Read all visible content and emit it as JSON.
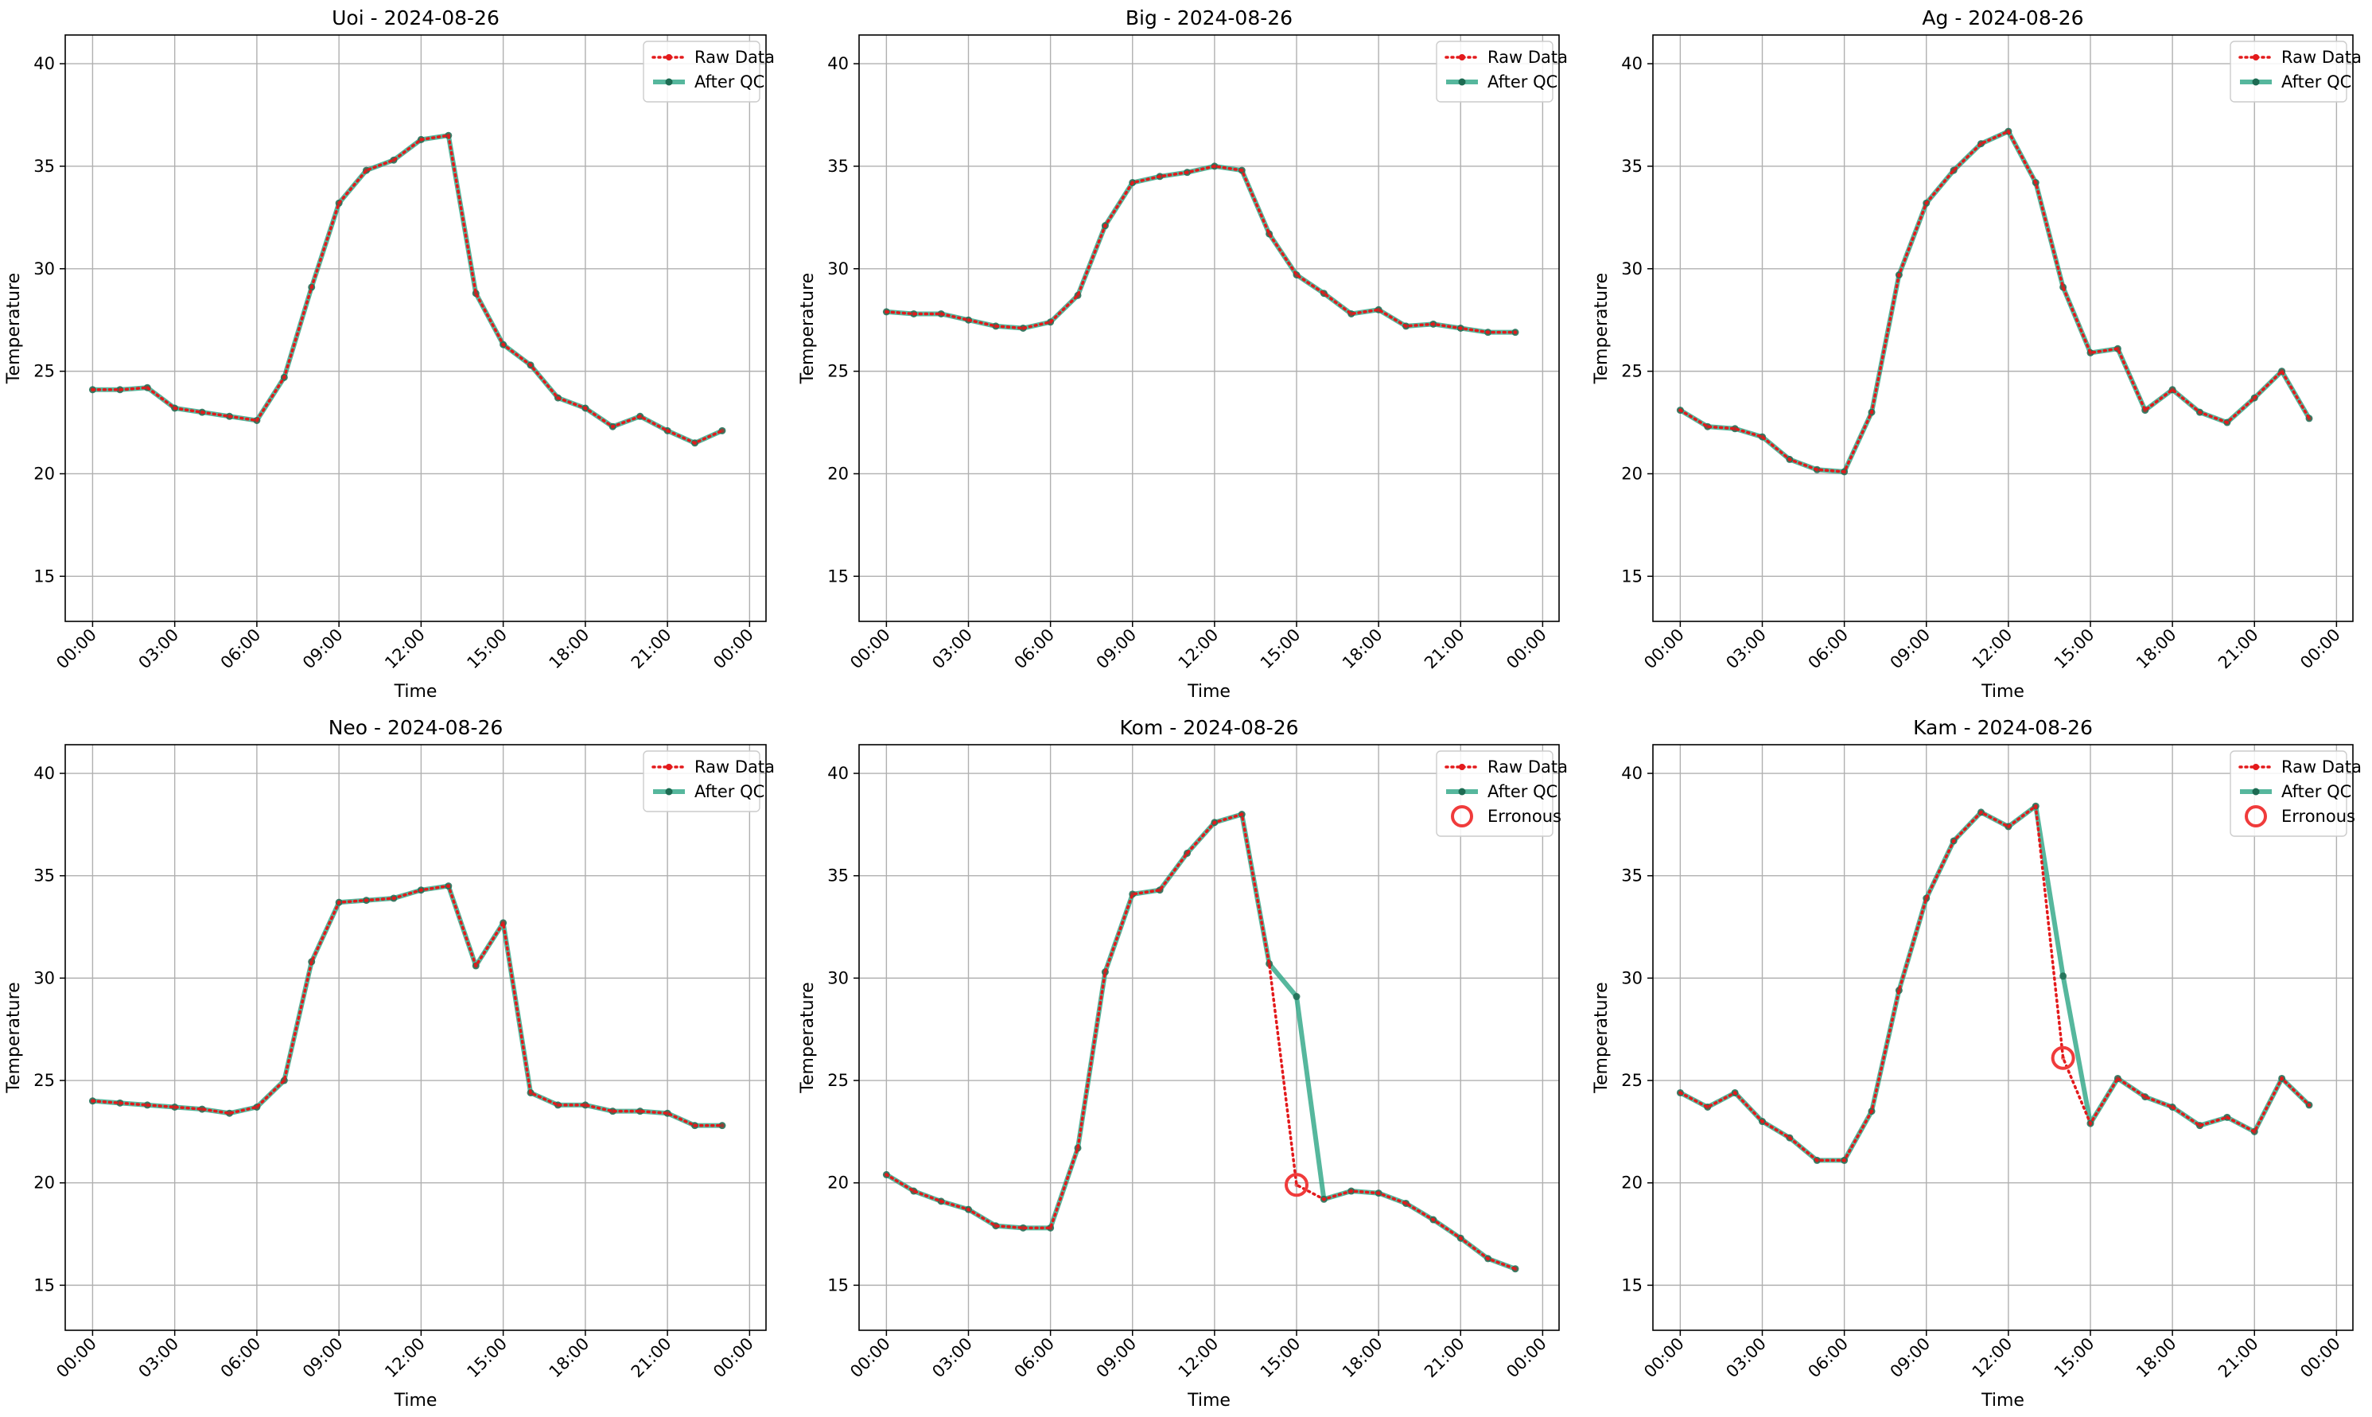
{
  "colors": {
    "raw": "#e31a1c",
    "qc": "#2ca584",
    "qc_marker": "#1d6b52",
    "erroneous": "#f03b3b",
    "grid": "#b0b0b0",
    "axis": "#000000"
  },
  "chart_data": [
    {
      "type": "line",
      "title": "Uoi - 2024-08-26",
      "xlabel": "Time",
      "ylabel": "Temperature",
      "ylim": [
        12.8,
        41.4
      ],
      "yticks": [
        15,
        20,
        25,
        30,
        35,
        40
      ],
      "xlim": [
        -1.0,
        24.6
      ],
      "xticks": [
        0,
        3,
        6,
        9,
        12,
        15,
        18,
        21,
        24
      ],
      "xticklabels": [
        "00:00",
        "03:00",
        "06:00",
        "09:00",
        "12:00",
        "15:00",
        "18:00",
        "21:00",
        "00:00"
      ],
      "grid": true,
      "legend_position": "top-right",
      "legend": [
        "Raw Data",
        "After QC"
      ],
      "x": [
        0,
        1,
        2,
        3,
        4,
        5,
        6,
        7,
        8,
        9,
        10,
        11,
        12,
        13,
        14,
        15,
        16,
        17,
        18,
        19,
        20,
        21,
        22,
        23
      ],
      "series": [
        {
          "name": "Raw Data",
          "style": "dotted",
          "values": [
            24.1,
            24.1,
            24.2,
            23.2,
            23.0,
            22.8,
            22.6,
            24.7,
            29.1,
            33.2,
            34.8,
            35.3,
            36.3,
            36.5,
            28.8,
            26.3,
            25.3,
            23.7,
            23.2,
            22.3,
            22.8,
            22.1,
            21.5,
            22.1
          ]
        },
        {
          "name": "After QC",
          "style": "solid",
          "values": [
            24.1,
            24.1,
            24.2,
            23.2,
            23.0,
            22.8,
            22.6,
            24.7,
            29.1,
            33.2,
            34.8,
            35.3,
            36.3,
            36.5,
            28.8,
            26.3,
            25.3,
            23.7,
            23.2,
            22.3,
            22.8,
            22.1,
            21.5,
            22.1
          ]
        }
      ],
      "erroneous": []
    },
    {
      "type": "line",
      "title": "Big - 2024-08-26",
      "xlabel": "Time",
      "ylabel": "Temperature",
      "ylim": [
        12.8,
        41.4
      ],
      "yticks": [
        15,
        20,
        25,
        30,
        35,
        40
      ],
      "xlim": [
        -1.0,
        24.6
      ],
      "xticks": [
        0,
        3,
        6,
        9,
        12,
        15,
        18,
        21,
        24
      ],
      "xticklabels": [
        "00:00",
        "03:00",
        "06:00",
        "09:00",
        "12:00",
        "15:00",
        "18:00",
        "21:00",
        "00:00"
      ],
      "grid": true,
      "legend_position": "top-right",
      "legend": [
        "Raw Data",
        "After QC"
      ],
      "x": [
        0,
        1,
        2,
        3,
        4,
        5,
        6,
        7,
        8,
        9,
        10,
        11,
        12,
        13,
        14,
        15,
        16,
        17,
        18,
        19,
        20,
        21,
        22,
        23
      ],
      "series": [
        {
          "name": "Raw Data",
          "style": "dotted",
          "values": [
            27.9,
            27.8,
            27.8,
            27.5,
            27.2,
            27.1,
            27.4,
            28.7,
            32.1,
            34.2,
            34.5,
            34.7,
            35.0,
            34.8,
            31.7,
            29.7,
            28.8,
            27.8,
            28.0,
            27.2,
            27.3,
            27.1,
            26.9,
            26.9
          ]
        },
        {
          "name": "After QC",
          "style": "solid",
          "values": [
            27.9,
            27.8,
            27.8,
            27.5,
            27.2,
            27.1,
            27.4,
            28.7,
            32.1,
            34.2,
            34.5,
            34.7,
            35.0,
            34.8,
            31.7,
            29.7,
            28.8,
            27.8,
            28.0,
            27.2,
            27.3,
            27.1,
            26.9,
            26.9
          ]
        }
      ],
      "erroneous": []
    },
    {
      "type": "line",
      "title": "Ag - 2024-08-26",
      "xlabel": "Time",
      "ylabel": "Temperature",
      "ylim": [
        12.8,
        41.4
      ],
      "yticks": [
        15,
        20,
        25,
        30,
        35,
        40
      ],
      "xlim": [
        -1.0,
        24.6
      ],
      "xticks": [
        0,
        3,
        6,
        9,
        12,
        15,
        18,
        21,
        24
      ],
      "xticklabels": [
        "00:00",
        "03:00",
        "06:00",
        "09:00",
        "12:00",
        "15:00",
        "18:00",
        "21:00",
        "00:00"
      ],
      "grid": true,
      "legend_position": "top-right",
      "legend": [
        "Raw Data",
        "After QC"
      ],
      "x": [
        0,
        1,
        2,
        3,
        4,
        5,
        6,
        7,
        8,
        9,
        10,
        11,
        12,
        13,
        14,
        15,
        16,
        17,
        18,
        19,
        20,
        21,
        22,
        23
      ],
      "series": [
        {
          "name": "Raw Data",
          "style": "dotted",
          "values": [
            23.1,
            22.3,
            22.2,
            21.8,
            20.7,
            20.2,
            20.1,
            23.0,
            29.7,
            33.2,
            34.8,
            36.1,
            36.7,
            34.2,
            29.1,
            25.9,
            26.1,
            23.1,
            24.1,
            23.0,
            22.5,
            23.7,
            25.0,
            22.7
          ]
        },
        {
          "name": "After QC",
          "style": "solid",
          "values": [
            23.1,
            22.3,
            22.2,
            21.8,
            20.7,
            20.2,
            20.1,
            23.0,
            29.7,
            33.2,
            34.8,
            36.1,
            36.7,
            34.2,
            29.1,
            25.9,
            26.1,
            23.1,
            24.1,
            23.0,
            22.5,
            23.7,
            25.0,
            22.7
          ]
        }
      ],
      "erroneous": []
    },
    {
      "type": "line",
      "title": "Neo - 2024-08-26",
      "xlabel": "Time",
      "ylabel": "Temperature",
      "ylim": [
        12.8,
        41.4
      ],
      "yticks": [
        15,
        20,
        25,
        30,
        35,
        40
      ],
      "xlim": [
        -1.0,
        24.6
      ],
      "xticks": [
        0,
        3,
        6,
        9,
        12,
        15,
        18,
        21,
        24
      ],
      "xticklabels": [
        "00:00",
        "03:00",
        "06:00",
        "09:00",
        "12:00",
        "15:00",
        "18:00",
        "21:00",
        "00:00"
      ],
      "grid": true,
      "legend_position": "top-right",
      "legend": [
        "Raw Data",
        "After QC"
      ],
      "x": [
        0,
        1,
        2,
        3,
        4,
        5,
        6,
        7,
        8,
        9,
        10,
        11,
        12,
        13,
        14,
        15,
        16,
        17,
        18,
        19,
        20,
        21,
        22,
        23
      ],
      "series": [
        {
          "name": "Raw Data",
          "style": "dotted",
          "values": [
            24.0,
            23.9,
            23.8,
            23.7,
            23.6,
            23.4,
            23.7,
            25.0,
            30.8,
            33.7,
            33.8,
            33.9,
            34.3,
            34.5,
            30.6,
            32.7,
            24.4,
            23.8,
            23.8,
            23.5,
            23.5,
            23.4,
            22.8,
            22.8
          ]
        },
        {
          "name": "After QC",
          "style": "solid",
          "values": [
            24.0,
            23.9,
            23.8,
            23.7,
            23.6,
            23.4,
            23.7,
            25.0,
            30.8,
            33.7,
            33.8,
            33.9,
            34.3,
            34.5,
            30.6,
            32.7,
            24.4,
            23.8,
            23.8,
            23.5,
            23.5,
            23.4,
            22.8,
            22.8
          ]
        }
      ],
      "erroneous": []
    },
    {
      "type": "line",
      "title": "Kom - 2024-08-26",
      "xlabel": "Time",
      "ylabel": "Temperature",
      "ylim": [
        12.8,
        41.4
      ],
      "yticks": [
        15,
        20,
        25,
        30,
        35,
        40
      ],
      "xlim": [
        -1.0,
        24.6
      ],
      "xticks": [
        0,
        3,
        6,
        9,
        12,
        15,
        18,
        21,
        24
      ],
      "xticklabels": [
        "00:00",
        "03:00",
        "06:00",
        "09:00",
        "12:00",
        "15:00",
        "18:00",
        "21:00",
        "00:00"
      ],
      "grid": true,
      "legend_position": "top-right",
      "legend": [
        "Raw Data",
        "After QC",
        "Erronous"
      ],
      "x": [
        0,
        1,
        2,
        3,
        4,
        5,
        6,
        7,
        8,
        9,
        10,
        11,
        12,
        13,
        14,
        15,
        16,
        17,
        18,
        19,
        20,
        21,
        22,
        23
      ],
      "series": [
        {
          "name": "Raw Data",
          "style": "dotted",
          "values": [
            20.4,
            19.6,
            19.1,
            18.7,
            17.9,
            17.8,
            17.8,
            21.7,
            30.3,
            34.1,
            34.3,
            36.1,
            37.6,
            38.0,
            30.7,
            19.9,
            19.2,
            19.6,
            19.5,
            19.0,
            18.2,
            17.3,
            16.3,
            15.8
          ]
        },
        {
          "name": "After QC",
          "style": "solid",
          "values": [
            20.4,
            19.6,
            19.1,
            18.7,
            17.9,
            17.8,
            17.8,
            21.7,
            30.3,
            34.1,
            34.3,
            36.1,
            37.6,
            38.0,
            30.7,
            29.1,
            19.2,
            19.6,
            19.5,
            19.0,
            18.2,
            17.3,
            16.3,
            15.8
          ]
        }
      ],
      "erroneous": [
        {
          "x": 15,
          "y": 19.9
        }
      ]
    },
    {
      "type": "line",
      "title": "Kam - 2024-08-26",
      "xlabel": "Time",
      "ylabel": "Temperature",
      "ylim": [
        12.8,
        41.4
      ],
      "yticks": [
        15,
        20,
        25,
        30,
        35,
        40
      ],
      "xlim": [
        -1.0,
        24.6
      ],
      "xticks": [
        0,
        3,
        6,
        9,
        12,
        15,
        18,
        21,
        24
      ],
      "xticklabels": [
        "00:00",
        "03:00",
        "06:00",
        "09:00",
        "12:00",
        "15:00",
        "18:00",
        "21:00",
        "00:00"
      ],
      "grid": true,
      "legend_position": "top-right",
      "legend": [
        "Raw Data",
        "After QC",
        "Erronous"
      ],
      "x": [
        0,
        1,
        2,
        3,
        4,
        5,
        6,
        7,
        8,
        9,
        10,
        11,
        12,
        13,
        14,
        15,
        16,
        17,
        18,
        19,
        20,
        21,
        22,
        23
      ],
      "series": [
        {
          "name": "Raw Data",
          "style": "dotted",
          "values": [
            24.4,
            23.7,
            24.4,
            23.0,
            22.2,
            21.1,
            21.1,
            23.5,
            29.4,
            33.9,
            36.7,
            38.1,
            37.4,
            38.4,
            26.1,
            22.9,
            25.1,
            24.2,
            23.7,
            22.8,
            23.2,
            22.5,
            25.1,
            23.8
          ]
        },
        {
          "name": "After QC",
          "style": "solid",
          "values": [
            24.4,
            23.7,
            24.4,
            23.0,
            22.2,
            21.1,
            21.1,
            23.5,
            29.4,
            33.9,
            36.7,
            38.1,
            37.4,
            38.4,
            30.1,
            22.9,
            25.1,
            24.2,
            23.7,
            22.8,
            23.2,
            22.5,
            25.1,
            23.8
          ]
        }
      ],
      "erroneous": [
        {
          "x": 14,
          "y": 26.1
        }
      ]
    }
  ]
}
